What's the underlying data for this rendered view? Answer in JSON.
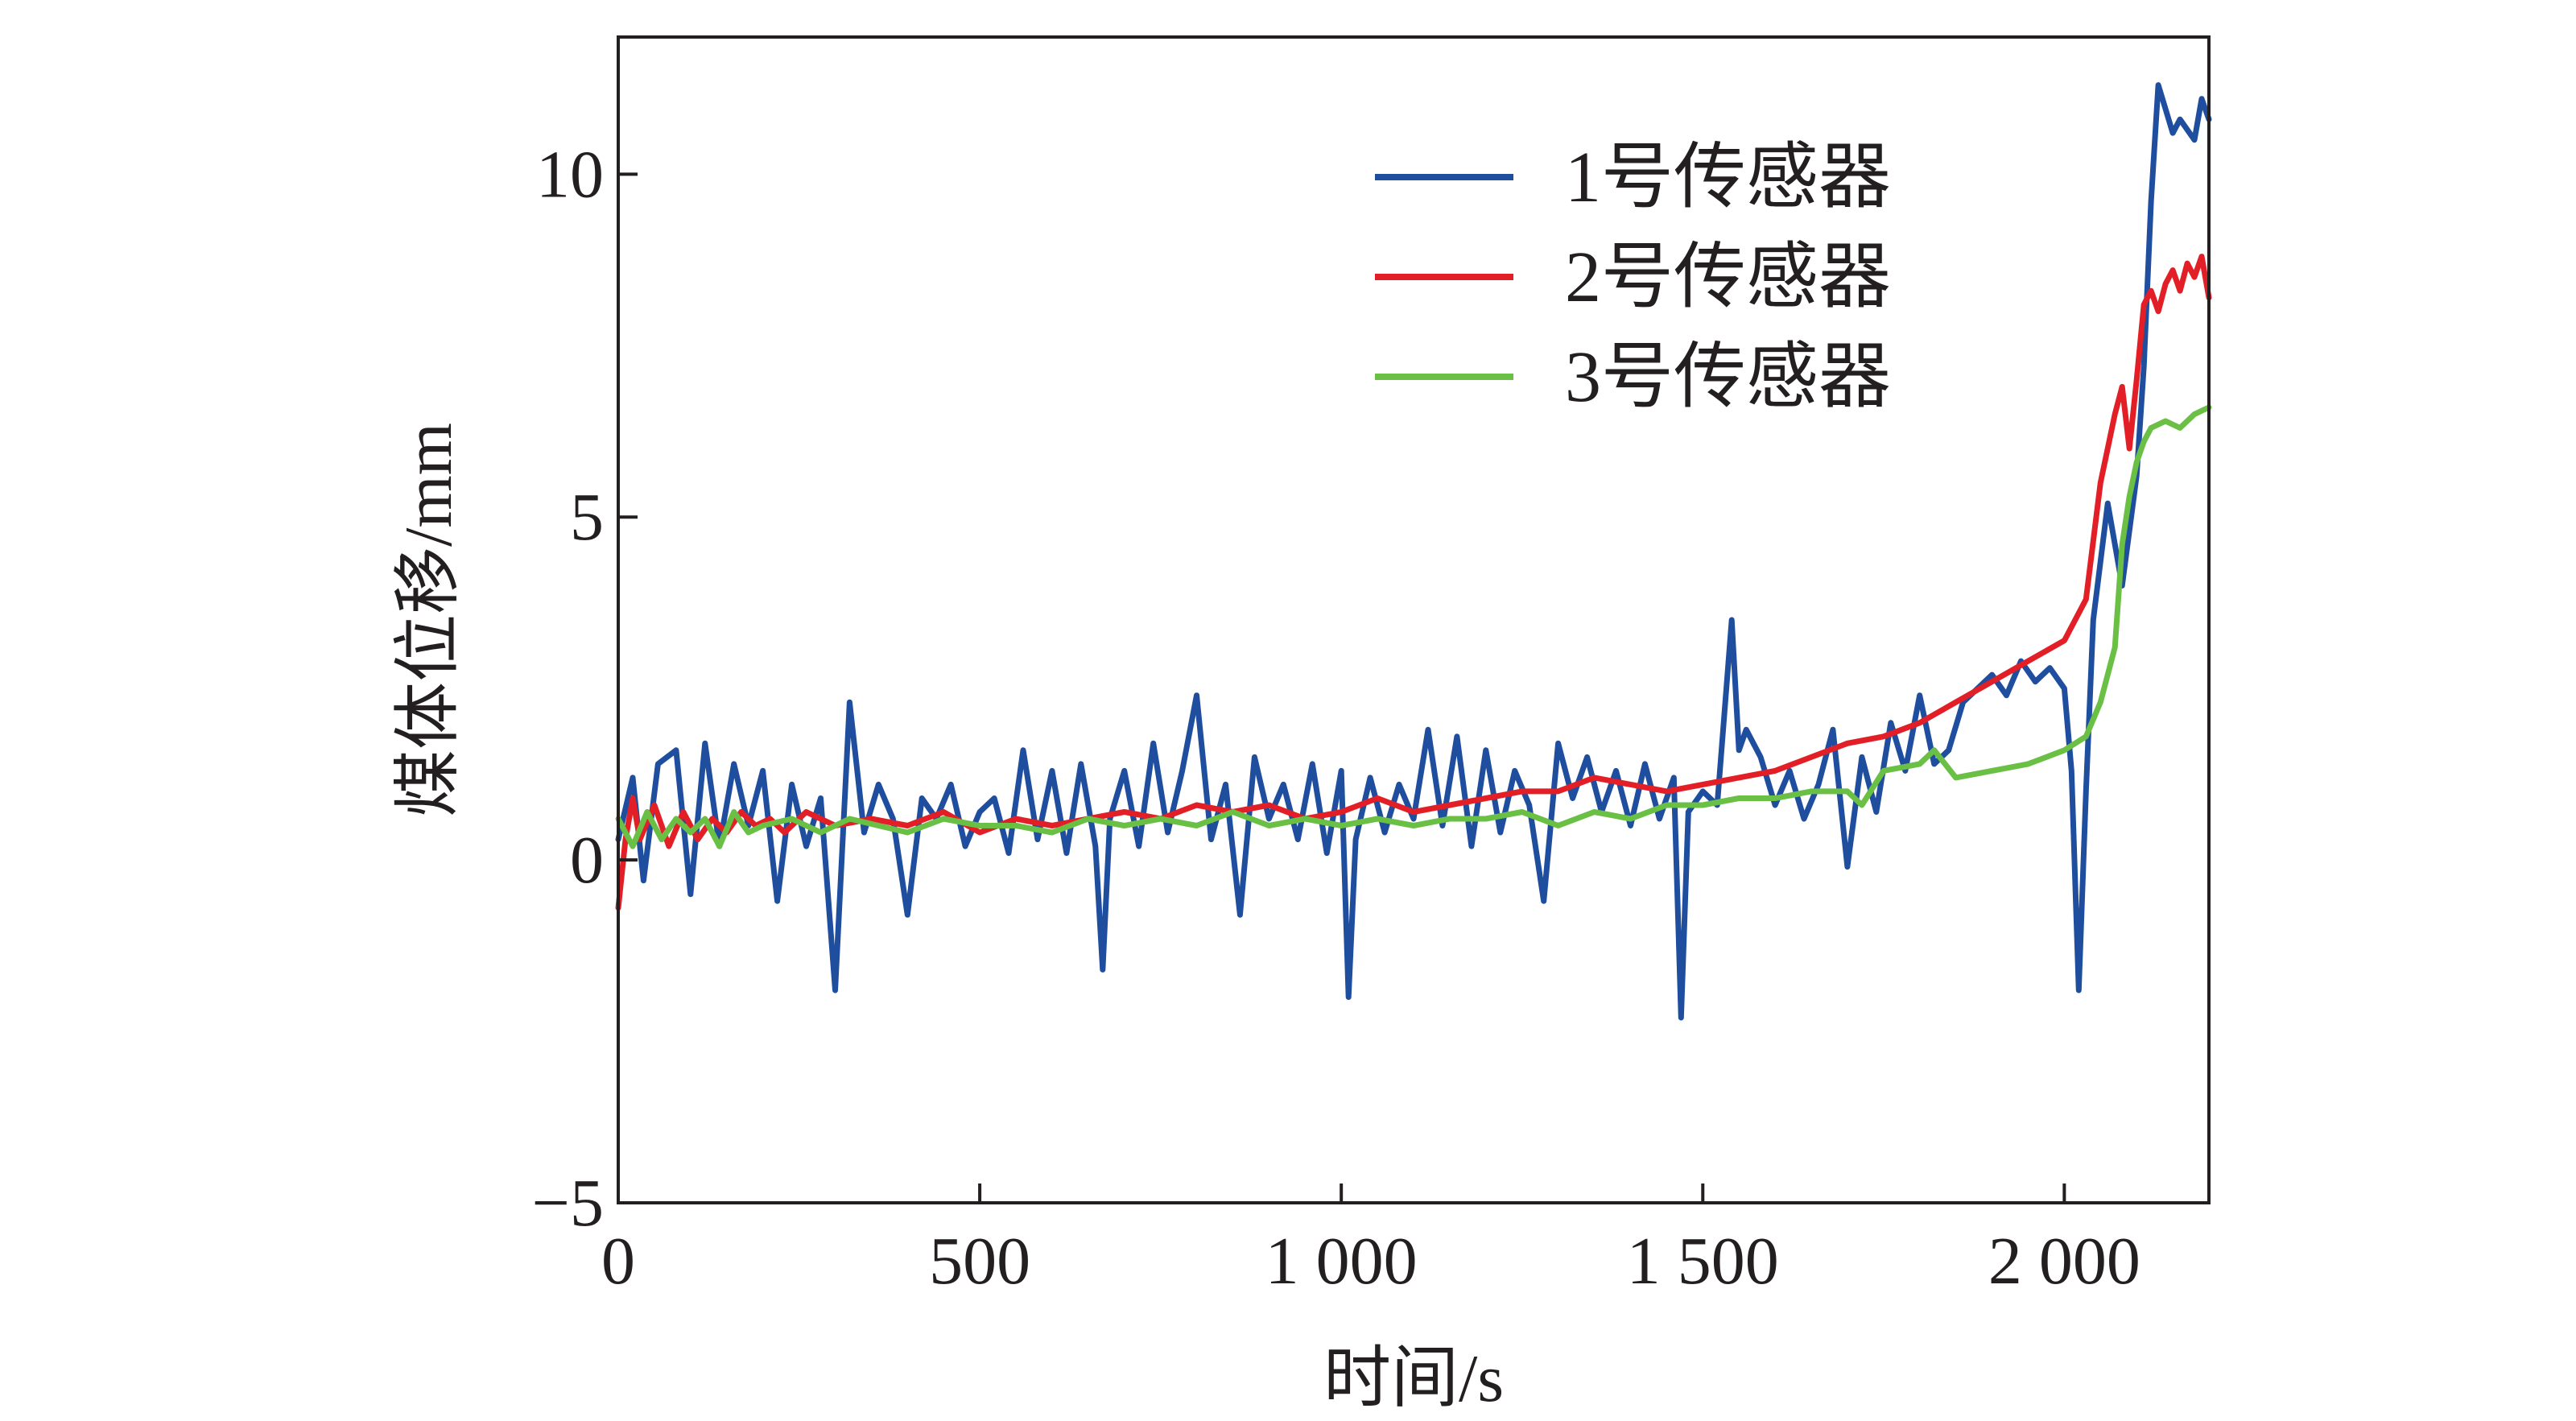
{
  "chart_data": {
    "type": "line",
    "title": "",
    "xlabel": "时间/s",
    "ylabel": "煤体位移/mm",
    "xlim": [
      0,
      2200
    ],
    "ylim": [
      -5,
      12
    ],
    "xticks": [
      0,
      500,
      1000,
      1500,
      2000
    ],
    "xtick_labels": [
      "0",
      "500",
      "1 000",
      "1 500",
      "2 000"
    ],
    "yticks": [
      -5,
      0,
      5,
      10
    ],
    "ytick_labels": [
      "−5",
      "0",
      "5",
      "10"
    ],
    "grid": false,
    "legend_position": "top-right",
    "series": [
      {
        "name": "1号传感器",
        "color": "#1f4e9e",
        "x": [
          0,
          20,
          35,
          55,
          80,
          100,
          120,
          140,
          160,
          180,
          200,
          220,
          240,
          260,
          280,
          300,
          320,
          340,
          360,
          380,
          400,
          420,
          440,
          460,
          480,
          500,
          520,
          540,
          560,
          580,
          600,
          620,
          640,
          660,
          670,
          680,
          700,
          720,
          740,
          760,
          780,
          800,
          820,
          840,
          860,
          880,
          900,
          920,
          940,
          960,
          980,
          1000,
          1010,
          1020,
          1040,
          1060,
          1080,
          1100,
          1120,
          1140,
          1160,
          1180,
          1200,
          1220,
          1240,
          1260,
          1280,
          1300,
          1320,
          1340,
          1360,
          1380,
          1400,
          1420,
          1440,
          1460,
          1470,
          1480,
          1500,
          1520,
          1540,
          1550,
          1560,
          1580,
          1600,
          1620,
          1640,
          1660,
          1680,
          1700,
          1720,
          1740,
          1760,
          1780,
          1800,
          1820,
          1840,
          1860,
          1880,
          1900,
          1920,
          1940,
          1960,
          1980,
          2000,
          2010,
          2020,
          2030,
          2040,
          2060,
          2080,
          2100,
          2110,
          2120,
          2130,
          2150,
          2160,
          2180,
          2190,
          2200
        ],
        "values": [
          0.3,
          1.2,
          -0.3,
          1.4,
          1.6,
          -0.5,
          1.7,
          0.2,
          1.4,
          0.5,
          1.3,
          -0.6,
          1.1,
          0.2,
          0.9,
          -1.9,
          2.3,
          0.4,
          1.1,
          0.6,
          -0.8,
          0.9,
          0.6,
          1.1,
          0.2,
          0.7,
          0.9,
          0.1,
          1.6,
          0.3,
          1.3,
          0.1,
          1.4,
          0.2,
          -1.6,
          0.6,
          1.3,
          0.2,
          1.7,
          0.4,
          1.3,
          2.4,
          0.3,
          1.1,
          -0.8,
          1.5,
          0.6,
          1.1,
          0.3,
          1.4,
          0.1,
          1.3,
          -2.0,
          0.3,
          1.2,
          0.4,
          1.1,
          0.6,
          1.9,
          0.5,
          1.8,
          0.2,
          1.6,
          0.4,
          1.3,
          0.8,
          -0.6,
          1.7,
          0.9,
          1.5,
          0.7,
          1.3,
          0.5,
          1.4,
          0.6,
          1.2,
          -2.3,
          0.7,
          1.0,
          0.8,
          3.5,
          1.6,
          1.9,
          1.5,
          0.8,
          1.3,
          0.6,
          1.1,
          1.9,
          -0.1,
          1.5,
          0.7,
          2.0,
          1.3,
          2.4,
          1.4,
          1.6,
          2.3,
          2.5,
          2.7,
          2.4,
          2.9,
          2.6,
          2.8,
          2.5,
          1.3,
          -1.9,
          1.0,
          3.5,
          5.2,
          4.0,
          5.6,
          7.2,
          9.6,
          11.3,
          10.6,
          10.8,
          10.5,
          11.1,
          10.8
        ]
      },
      {
        "name": "2号传感器",
        "color": "#e21f26",
        "x": [
          0,
          10,
          20,
          30,
          50,
          70,
          90,
          110,
          130,
          150,
          170,
          190,
          210,
          230,
          260,
          300,
          350,
          400,
          450,
          500,
          550,
          600,
          650,
          700,
          750,
          800,
          850,
          900,
          950,
          1000,
          1050,
          1100,
          1150,
          1200,
          1250,
          1300,
          1350,
          1400,
          1450,
          1500,
          1550,
          1600,
          1650,
          1700,
          1750,
          1800,
          1850,
          1900,
          1950,
          2000,
          2030,
          2050,
          2070,
          2080,
          2090,
          2100,
          2110,
          2120,
          2130,
          2140,
          2150,
          2160,
          2170,
          2180,
          2190,
          2200
        ],
        "values": [
          -0.7,
          0.3,
          0.9,
          0.3,
          0.8,
          0.2,
          0.7,
          0.3,
          0.6,
          0.4,
          0.7,
          0.5,
          0.6,
          0.4,
          0.7,
          0.5,
          0.6,
          0.5,
          0.7,
          0.4,
          0.6,
          0.5,
          0.6,
          0.7,
          0.6,
          0.8,
          0.7,
          0.8,
          0.6,
          0.7,
          0.9,
          0.7,
          0.8,
          0.9,
          1.0,
          1.0,
          1.2,
          1.1,
          1.0,
          1.1,
          1.2,
          1.3,
          1.5,
          1.7,
          1.8,
          2.0,
          2.3,
          2.6,
          2.9,
          3.2,
          3.8,
          5.5,
          6.5,
          6.9,
          6.0,
          7.0,
          8.1,
          8.3,
          8.0,
          8.4,
          8.6,
          8.3,
          8.7,
          8.5,
          8.8,
          8.2
        ]
      },
      {
        "name": "3号传感器",
        "color": "#6abf45",
        "x": [
          0,
          20,
          40,
          60,
          80,
          100,
          120,
          140,
          160,
          180,
          200,
          240,
          280,
          320,
          360,
          400,
          450,
          500,
          550,
          600,
          650,
          700,
          750,
          800,
          850,
          900,
          950,
          1000,
          1050,
          1100,
          1150,
          1200,
          1250,
          1300,
          1350,
          1400,
          1450,
          1500,
          1550,
          1600,
          1650,
          1700,
          1720,
          1750,
          1800,
          1820,
          1850,
          1900,
          1950,
          2000,
          2030,
          2050,
          2070,
          2080,
          2090,
          2100,
          2110,
          2120,
          2140,
          2160,
          2180,
          2200
        ],
        "values": [
          0.6,
          0.2,
          0.7,
          0.3,
          0.6,
          0.4,
          0.6,
          0.2,
          0.7,
          0.4,
          0.5,
          0.6,
          0.4,
          0.6,
          0.5,
          0.4,
          0.6,
          0.5,
          0.5,
          0.4,
          0.6,
          0.5,
          0.6,
          0.5,
          0.7,
          0.5,
          0.6,
          0.5,
          0.6,
          0.5,
          0.6,
          0.6,
          0.7,
          0.5,
          0.7,
          0.6,
          0.8,
          0.8,
          0.9,
          0.9,
          1.0,
          1.0,
          0.8,
          1.3,
          1.4,
          1.6,
          1.2,
          1.3,
          1.4,
          1.6,
          1.8,
          2.3,
          3.1,
          4.6,
          5.3,
          5.8,
          6.1,
          6.3,
          6.4,
          6.3,
          6.5,
          6.6
        ]
      }
    ]
  }
}
